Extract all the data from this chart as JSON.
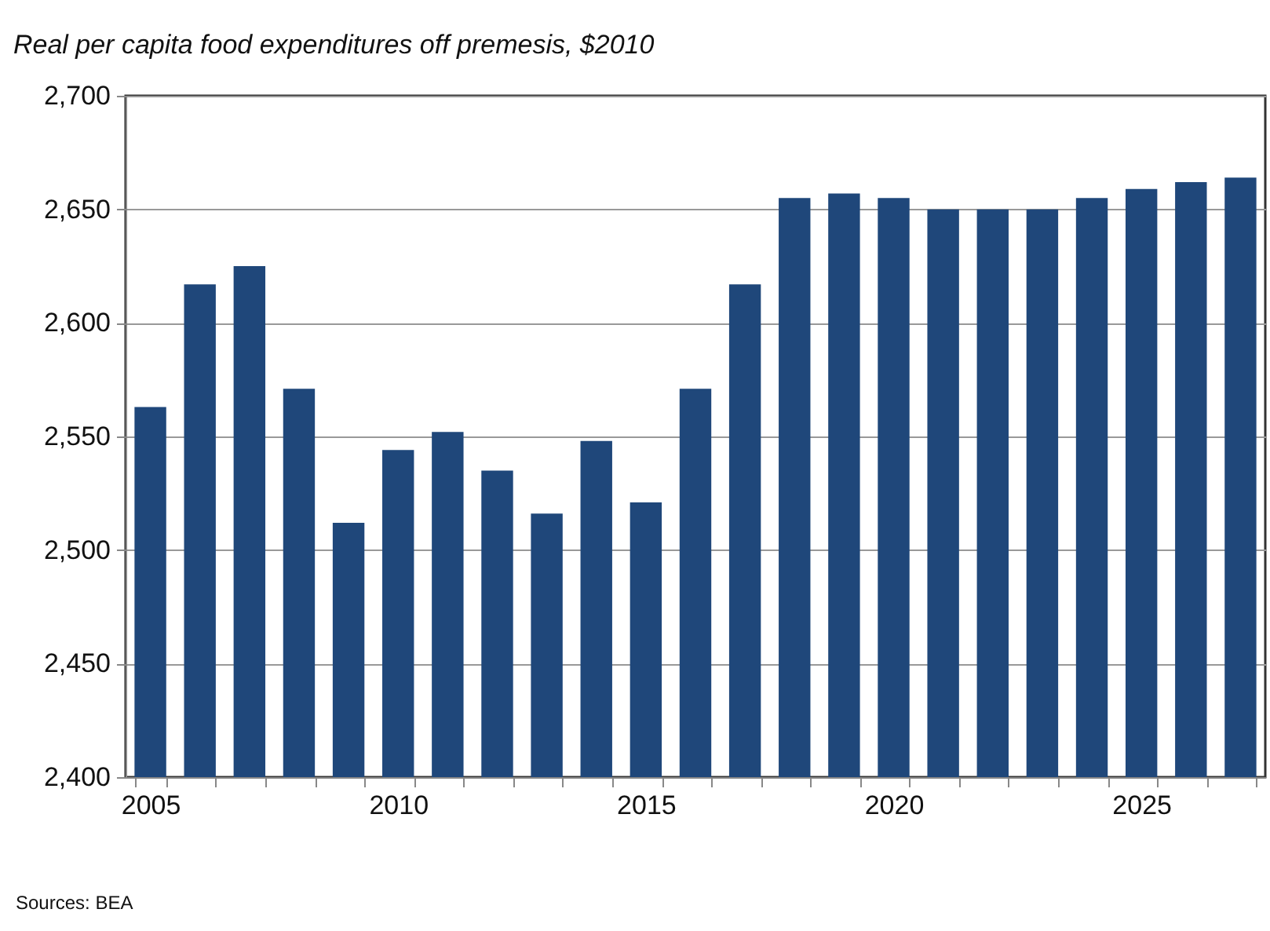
{
  "chart_data": {
    "type": "bar",
    "title": "Real per capita food expenditures off premesis, $2010",
    "categories": [
      "2005",
      null,
      null,
      null,
      null,
      "2010",
      null,
      null,
      null,
      null,
      "2015",
      null,
      null,
      null,
      null,
      "2020",
      null,
      null,
      null,
      null,
      "2025",
      null,
      null
    ],
    "values": [
      2563,
      2617,
      2625,
      2571,
      2512,
      2544,
      2552,
      2535,
      2516,
      2548,
      2521,
      2571,
      2617,
      2655,
      2657,
      2655,
      2650,
      2650,
      2650,
      2655,
      2659,
      2662,
      2664
    ],
    "color": "#1f477a",
    "ylim": [
      2400,
      2700
    ],
    "yticks": [
      {
        "value": 2400,
        "label": "2,400"
      },
      {
        "value": 2450,
        "label": "2,450"
      },
      {
        "value": 2500,
        "label": "2,500"
      },
      {
        "value": 2550,
        "label": "2,550"
      },
      {
        "value": 2600,
        "label": "2,600"
      },
      {
        "value": 2650,
        "label": "2,650"
      },
      {
        "value": 2700,
        "label": "2,700"
      }
    ],
    "grid": "y",
    "annotations": [
      "Sources: BEA"
    ]
  }
}
